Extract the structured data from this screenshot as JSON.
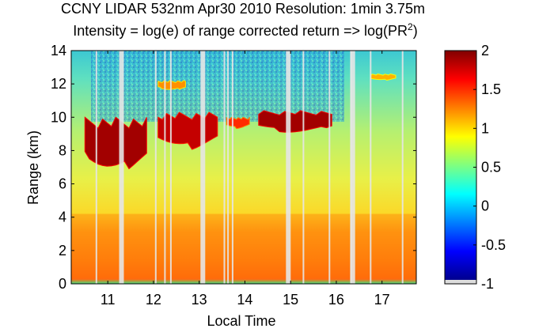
{
  "chart_data": {
    "type": "heatmap",
    "title_line1": "CCNY LIDAR 532nm Apr30 2010 Resolution: 1min 3.75m",
    "title_line2_prefix": "Intensity = log(e) of range corrected return => log(PR",
    "title_line2_sup": "2",
    "title_line2_suffix": ")",
    "xlabel": "Local Time",
    "ylabel": "Range (km)",
    "x_range": [
      10.2,
      17.75
    ],
    "y_range": [
      0,
      14
    ],
    "x_ticks": [
      11,
      12,
      13,
      14,
      15,
      16,
      17
    ],
    "y_ticks": [
      0,
      2,
      4,
      6,
      8,
      10,
      12,
      14
    ],
    "colorbar": {
      "range": [
        -1,
        2
      ],
      "ticks": [
        -1,
        -0.5,
        0,
        0.5,
        1,
        1.5,
        2
      ],
      "tick_labels": [
        "-1",
        "-0.5",
        "0",
        "0.5",
        "1",
        "1.5",
        "2"
      ]
    },
    "data_gaps_hours": [
      10.75,
      11.3,
      12.05,
      12.25,
      12.38,
      13.08,
      13.55,
      13.63,
      13.73,
      14.95,
      15.28,
      15.85,
      16.32,
      16.36,
      16.75,
      17.45
    ],
    "cloud_layers": [
      {
        "name": "cirrus layer A",
        "x_start": 10.5,
        "x_end": 11.85,
        "base_km": 6.6,
        "top_km": 10.0,
        "value": 1.9
      },
      {
        "name": "cirrus layer B",
        "x_start": 12.1,
        "x_end": 13.4,
        "base_km": 8.0,
        "top_km": 10.3,
        "value": 1.8
      },
      {
        "name": "cirrus layer C",
        "x_start": 13.6,
        "x_end": 14.1,
        "base_km": 9.3,
        "top_km": 10.0,
        "value": 1.5
      },
      {
        "name": "cirrus layer D",
        "x_start": 14.3,
        "x_end": 15.9,
        "base_km": 9.0,
        "top_km": 10.4,
        "value": 1.9
      },
      {
        "name": "high thin layer 1",
        "x_start": 12.1,
        "x_end": 12.7,
        "base_km": 11.6,
        "top_km": 12.2,
        "value": 1.2
      },
      {
        "name": "high thin layer 2",
        "x_start": 16.75,
        "x_end": 17.3,
        "base_km": 12.2,
        "top_km": 12.6,
        "value": 1.1
      }
    ],
    "boundary_layer": {
      "top_km": 4.2,
      "value": 1.3
    },
    "grid": false
  }
}
